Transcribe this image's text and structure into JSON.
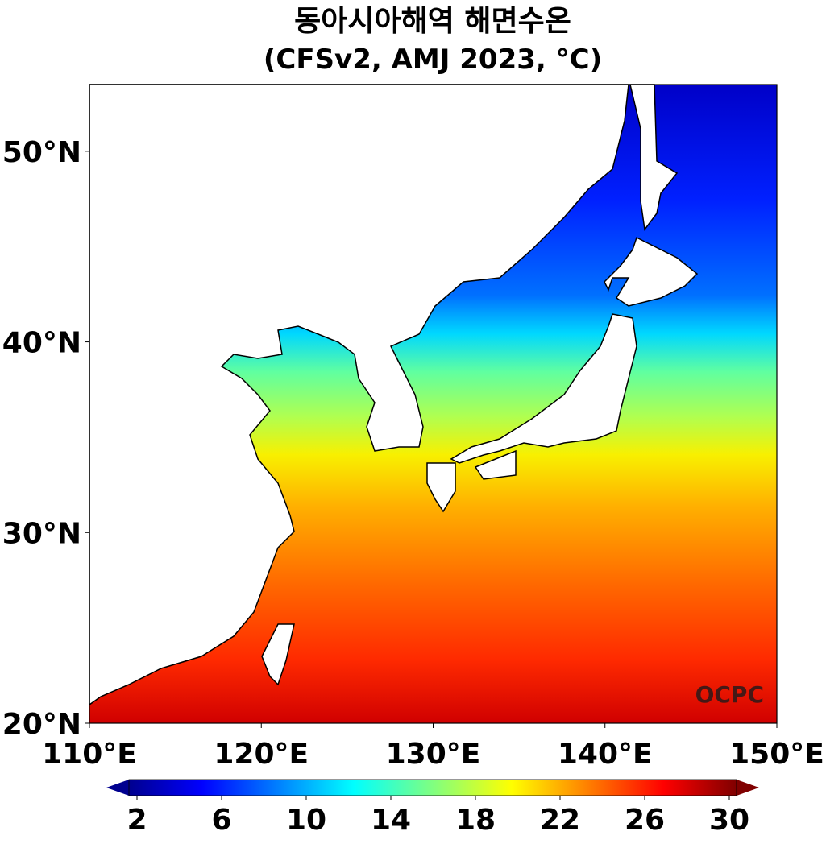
{
  "title": "동아시아해역 해면수온",
  "subtitle": "(CFSv2, AMJ 2023, °C)",
  "map": {
    "xlim": [
      110,
      150
    ],
    "ylim": [
      20,
      53.5
    ],
    "xticks": [
      {
        "value": 110,
        "label": "110°E"
      },
      {
        "value": 120,
        "label": "120°E"
      },
      {
        "value": 130,
        "label": "130°E"
      },
      {
        "value": 140,
        "label": "140°E"
      },
      {
        "value": 150,
        "label": "150°E"
      }
    ],
    "yticks": [
      {
        "value": 20,
        "label": "20°N"
      },
      {
        "value": 30,
        "label": "30°N"
      },
      {
        "value": 40,
        "label": "40°N"
      },
      {
        "value": 50,
        "label": "50°N"
      }
    ]
  },
  "colorbar": {
    "range": [
      2,
      30
    ],
    "ticks": [
      2,
      6,
      10,
      14,
      18,
      22,
      26,
      30
    ]
  },
  "watermark": "OCPC"
}
